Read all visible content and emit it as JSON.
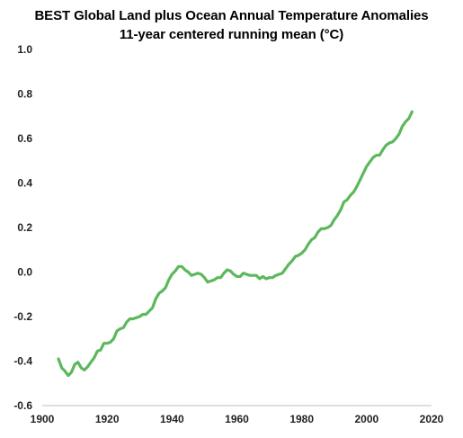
{
  "chart_data": {
    "type": "line",
    "title": "BEST Global Land plus Ocean Annual Temperature Anomalies",
    "subtitle": "11-year centered running mean (°C)",
    "xlabel": "",
    "ylabel": "",
    "xlim": [
      1900,
      2020
    ],
    "ylim": [
      -0.6,
      1.0
    ],
    "x_ticks": [
      1900,
      1920,
      1940,
      1960,
      1980,
      2000,
      2020
    ],
    "x_tick_labels": [
      "1900",
      "1920",
      "1940",
      "1960",
      "1980",
      "2000",
      "2020"
    ],
    "y_ticks": [
      -0.6,
      -0.4,
      -0.2,
      0.0,
      0.2,
      0.4,
      0.6,
      0.8,
      1.0
    ],
    "y_tick_labels": [
      "-0.6",
      "-0.4",
      "-0.2",
      "0.0",
      "0.2",
      "0.4",
      "0.6",
      "0.8",
      "1.0"
    ],
    "grid": false,
    "legend": "none",
    "series": [
      {
        "color": "#5cb85c",
        "x": [
          1905,
          1906,
          1907,
          1908,
          1909,
          1910,
          1911,
          1912,
          1913,
          1914,
          1915,
          1916,
          1917,
          1918,
          1919,
          1920,
          1921,
          1922,
          1923,
          1924,
          1925,
          1926,
          1927,
          1928,
          1929,
          1930,
          1931,
          1932,
          1933,
          1934,
          1935,
          1936,
          1937,
          1938,
          1939,
          1940,
          1941,
          1942,
          1943,
          1944,
          1945,
          1946,
          1947,
          1948,
          1949,
          1950,
          1951,
          1952,
          1953,
          1954,
          1955,
          1956,
          1957,
          1958,
          1959,
          1960,
          1961,
          1962,
          1963,
          1964,
          1965,
          1966,
          1967,
          1968,
          1969,
          1970,
          1971,
          1972,
          1973,
          1974,
          1975,
          1976,
          1977,
          1978,
          1979,
          1980,
          1981,
          1982,
          1983,
          1984,
          1985,
          1986,
          1987,
          1988,
          1989,
          1990,
          1991,
          1992,
          1993,
          1994,
          1995,
          1996,
          1997,
          1998,
          1999,
          2000,
          2001,
          2002,
          2003,
          2004,
          2005,
          2006,
          2007,
          2008,
          2009,
          2010,
          2011,
          2012,
          2013,
          2014
        ],
        "values": [
          -0.39,
          -0.43,
          -0.445,
          -0.465,
          -0.45,
          -0.415,
          -0.405,
          -0.43,
          -0.44,
          -0.425,
          -0.405,
          -0.385,
          -0.355,
          -0.35,
          -0.32,
          -0.32,
          -0.315,
          -0.3,
          -0.265,
          -0.255,
          -0.25,
          -0.225,
          -0.21,
          -0.21,
          -0.205,
          -0.2,
          -0.19,
          -0.19,
          -0.175,
          -0.16,
          -0.12,
          -0.095,
          -0.085,
          -0.07,
          -0.035,
          -0.01,
          0.005,
          0.025,
          0.025,
          0.01,
          0.0,
          -0.015,
          -0.01,
          -0.005,
          -0.01,
          -0.025,
          -0.045,
          -0.04,
          -0.035,
          -0.025,
          -0.025,
          -0.005,
          0.01,
          0.005,
          -0.01,
          -0.02,
          -0.02,
          -0.005,
          -0.01,
          -0.015,
          -0.015,
          -0.015,
          -0.03,
          -0.02,
          -0.03,
          -0.025,
          -0.025,
          -0.015,
          -0.01,
          -0.005,
          0.015,
          0.035,
          0.05,
          0.07,
          0.075,
          0.085,
          0.1,
          0.125,
          0.145,
          0.155,
          0.18,
          0.195,
          0.195,
          0.2,
          0.21,
          0.235,
          0.255,
          0.28,
          0.315,
          0.325,
          0.345,
          0.36,
          0.385,
          0.415,
          0.445,
          0.475,
          0.495,
          0.515,
          0.525,
          0.525,
          0.55,
          0.57,
          0.58,
          0.585,
          0.6,
          0.62,
          0.655,
          0.675,
          0.69,
          0.72
        ]
      }
    ]
  }
}
